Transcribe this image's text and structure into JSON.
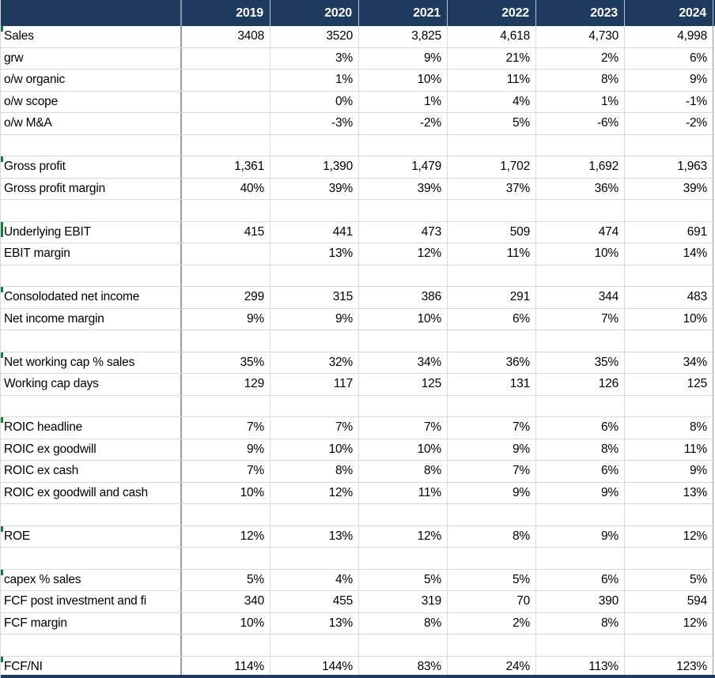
{
  "colors": {
    "header_bg": "#1f3a5f",
    "header_text": "#ffffff",
    "grid_light": "#d9d9d9",
    "grid_dark": "#9b9b9b",
    "section_indicator_green": "#217346",
    "cell_text": "#000000"
  },
  "table": {
    "header_corner": "",
    "years": [
      "2019",
      "2020",
      "2021",
      "2022",
      "2023",
      "2024"
    ],
    "rows": [
      {
        "label": "Sales",
        "values": [
          "3408",
          "3520",
          "3,825",
          "4,618",
          "4,730",
          "4,998"
        ],
        "tick": "small"
      },
      {
        "label": "grw",
        "values": [
          "",
          "3%",
          "9%",
          "21%",
          "2%",
          "6%"
        ]
      },
      {
        "label": "o/w organic",
        "values": [
          "",
          "1%",
          "10%",
          "11%",
          "8%",
          "9%"
        ]
      },
      {
        "label": "o/w scope",
        "values": [
          "",
          "0%",
          "1%",
          "4%",
          "1%",
          "-1%"
        ]
      },
      {
        "label": "o/w M&A",
        "values": [
          "",
          "-3%",
          "-2%",
          "5%",
          "-6%",
          "-2%"
        ]
      },
      {
        "label": "",
        "values": [
          "",
          "",
          "",
          "",
          "",
          ""
        ]
      },
      {
        "label": "Gross profit",
        "values": [
          "1,361",
          "1,390",
          "1,479",
          "1,702",
          "1,692",
          "1,963"
        ],
        "tick": "small"
      },
      {
        "label": "Gross profit margin",
        "values": [
          "40%",
          "39%",
          "39%",
          "37%",
          "36%",
          "39%"
        ]
      },
      {
        "label": "",
        "values": [
          "",
          "",
          "",
          "",
          "",
          ""
        ]
      },
      {
        "label": "Underlying EBIT",
        "values": [
          "415",
          "441",
          "473",
          "509",
          "474",
          "691"
        ],
        "tick": "tall"
      },
      {
        "label": "EBIT margin",
        "values": [
          "",
          "13%",
          "12%",
          "11%",
          "10%",
          "14%"
        ]
      },
      {
        "label": "",
        "values": [
          "",
          "",
          "",
          "",
          "",
          ""
        ]
      },
      {
        "label": "Consolodated net income",
        "values": [
          "299",
          "315",
          "386",
          "291",
          "344",
          "483"
        ],
        "tick": "small"
      },
      {
        "label": "Net income margin",
        "values": [
          "9%",
          "9%",
          "10%",
          "6%",
          "7%",
          "10%"
        ]
      },
      {
        "label": "",
        "values": [
          "",
          "",
          "",
          "",
          "",
          ""
        ]
      },
      {
        "label": "Net working cap % sales",
        "values": [
          "35%",
          "32%",
          "34%",
          "36%",
          "35%",
          "34%"
        ],
        "tick": "small"
      },
      {
        "label": "Working cap days",
        "values": [
          "129",
          "117",
          "125",
          "131",
          "126",
          "125"
        ]
      },
      {
        "label": "",
        "values": [
          "",
          "",
          "",
          "",
          "",
          ""
        ]
      },
      {
        "label": "ROIC headline",
        "values": [
          "7%",
          "7%",
          "7%",
          "7%",
          "6%",
          "8%"
        ],
        "tick": "small"
      },
      {
        "label": "ROIC ex goodwill",
        "values": [
          "9%",
          "10%",
          "10%",
          "9%",
          "8%",
          "11%"
        ]
      },
      {
        "label": "ROIC ex cash",
        "values": [
          "7%",
          "8%",
          "8%",
          "7%",
          "6%",
          "9%"
        ]
      },
      {
        "label": "ROIC ex goodwill and cash",
        "values": [
          "10%",
          "12%",
          "11%",
          "9%",
          "9%",
          "13%"
        ]
      },
      {
        "label": "",
        "values": [
          "",
          "",
          "",
          "",
          "",
          ""
        ]
      },
      {
        "label": "ROE",
        "values": [
          "12%",
          "13%",
          "12%",
          "8%",
          "9%",
          "12%"
        ],
        "tick": "small"
      },
      {
        "label": "",
        "values": [
          "",
          "",
          "",
          "",
          "",
          ""
        ]
      },
      {
        "label": "capex % sales",
        "values": [
          "5%",
          "4%",
          "5%",
          "5%",
          "6%",
          "5%"
        ],
        "tick": "small"
      },
      {
        "label": "FCF post investment and fi",
        "values": [
          "340",
          "455",
          "319",
          "70",
          "390",
          "594"
        ]
      },
      {
        "label": "FCF margin",
        "values": [
          "10%",
          "13%",
          "8%",
          "2%",
          "8%",
          "12%"
        ]
      },
      {
        "label": "",
        "values": [
          "",
          "",
          "",
          "",
          "",
          ""
        ]
      },
      {
        "label": "FCF/NI",
        "values": [
          "114%",
          "144%",
          "83%",
          "24%",
          "113%",
          "123%"
        ],
        "tick": "small"
      }
    ]
  }
}
